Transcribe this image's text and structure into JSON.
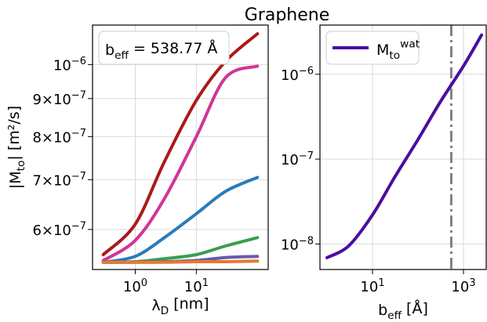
{
  "figure_title": "Graphene",
  "chart_data": [
    {
      "type": "line",
      "xlabel": "λ_D [nm]",
      "ylabel": "|M_to| [m²/s]",
      "xscale": "log",
      "yscale": "log",
      "xlim": [
        0.2,
        150
      ],
      "ylim": [
        5.3e-07,
        1.13e-06
      ],
      "grid": true,
      "x_ticks": [
        {
          "value": 1,
          "label": "10^0"
        },
        {
          "value": 10,
          "label": "10^1"
        }
      ],
      "y_ticks": [
        {
          "value": 6e-07,
          "label": "6×10^-7"
        },
        {
          "value": 7e-07,
          "label": "7×10^-7"
        },
        {
          "value": 8e-07,
          "label": "8×10^-7"
        },
        {
          "value": 9e-07,
          "label": "9×10^-7"
        },
        {
          "value": 1e-06,
          "label": "10^-6"
        }
      ],
      "annotation": "b_eff = 538.77 Å",
      "series": [
        {
          "color": "#aa1a1a",
          "x": [
            0.3,
            1,
            3,
            10,
            30,
            100
          ],
          "values": [
            5.55e-07,
            6.1e-07,
            7.4e-07,
            8.95e-07,
            1.01e-06,
            1.1e-06
          ]
        },
        {
          "color": "#d0359a",
          "x": [
            0.3,
            1,
            3,
            10,
            30,
            100
          ],
          "values": [
            5.45e-07,
            5.8e-07,
            6.6e-07,
            8e-07,
            9.6e-07,
            9.95e-07
          ]
        },
        {
          "color": "#2b7bb9",
          "x": [
            0.3,
            1,
            3,
            10,
            30,
            100
          ],
          "values": [
            5.42e-07,
            5.52e-07,
            5.85e-07,
            6.3e-07,
            6.75e-07,
            7.05e-07
          ]
        },
        {
          "color": "#3a9d4f",
          "x": [
            0.3,
            1,
            3,
            10,
            30,
            100
          ],
          "values": [
            5.42e-07,
            5.43e-07,
            5.48e-07,
            5.55e-07,
            5.7e-07,
            5.85e-07
          ]
        },
        {
          "color": "#6a5aa8",
          "x": [
            0.3,
            1,
            3,
            10,
            30,
            100
          ],
          "values": [
            5.42e-07,
            5.42e-07,
            5.43e-07,
            5.45e-07,
            5.5e-07,
            5.52e-07
          ]
        },
        {
          "color": "#e8792f",
          "x": [
            0.3,
            1,
            3,
            10,
            30,
            100
          ],
          "values": [
            5.42e-07,
            5.42e-07,
            5.42e-07,
            5.43e-07,
            5.43e-07,
            5.44e-07
          ]
        }
      ]
    },
    {
      "type": "line",
      "xlabel": "b_eff [Å]",
      "ylabel": "",
      "xscale": "log",
      "yscale": "log",
      "xlim": [
        0.7,
        3162
      ],
      "ylim": [
        5e-09,
        3.8e-06
      ],
      "grid": true,
      "x_ticks": [
        {
          "value": 10,
          "label": "10^1"
        },
        {
          "value": 1000,
          "label": "10^3"
        }
      ],
      "y_ticks": [
        {
          "value": 1e-08,
          "label": "10^-8"
        },
        {
          "value": 1e-07,
          "label": "10^-7"
        },
        {
          "value": 1e-06,
          "label": "10^-6"
        }
      ],
      "vline": {
        "x": 538.77,
        "color": "#808080",
        "style": "dash-dot"
      },
      "legend": {
        "placement": "top-left",
        "label": "M_to^wat"
      },
      "series": [
        {
          "name": "M_to^wat",
          "color": "#4b0d9e",
          "x": [
            1,
            3,
            10,
            30,
            100,
            300,
            1000,
            2500
          ],
          "values": [
            6.9e-09,
            9.5e-09,
            2.2e-08,
            6e-08,
            1.7e-07,
            4.6e-07,
            1.25e-06,
            2.9e-06
          ]
        }
      ]
    }
  ]
}
